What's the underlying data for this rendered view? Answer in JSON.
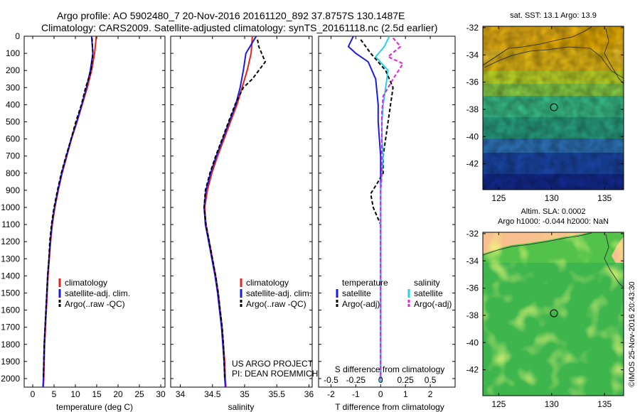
{
  "header": {
    "line1": "Argo profile: AO 5902480_7 20-Nov-2016 20161120_892 37.8757S 130.1487E",
    "line2": "Climatology: CARS2009. Satellite-adjusted climatology: synTS_20161118.nc (2.5d earlier)"
  },
  "colors": {
    "climatology": "#e8231a",
    "satellite": "#1a1ae6",
    "argo": "#000000",
    "sal_satellite": "#22d3e6",
    "sal_argo": "#e020e0",
    "land": "#f7c08e"
  },
  "chart_data": [
    {
      "type": "line",
      "id": "temperature",
      "xlabel": "temperature (deg C)",
      "xlim": [
        -2,
        31
      ],
      "xticks": [
        0,
        5,
        10,
        15,
        20,
        25,
        30
      ],
      "ylim": [
        0,
        2050
      ],
      "yticks": [
        0,
        100,
        200,
        300,
        400,
        500,
        600,
        700,
        800,
        900,
        1000,
        1100,
        1200,
        1300,
        1400,
        1500,
        1600,
        1700,
        1800,
        1900,
        2000
      ],
      "legend": [
        "climatology",
        "satellite-adj. clim.",
        "Argo(..raw -QC)"
      ],
      "series": [
        {
          "name": "climatology",
          "color": "#e8231a",
          "style": "solid",
          "x": [
            14.9,
            14.5,
            13.8,
            12.8,
            11.6,
            10.4,
            9.1,
            8.0,
            6.9,
            6.0,
            5.2,
            4.6,
            4.2,
            3.9,
            3.6,
            3.4,
            3.2,
            3.0,
            2.8,
            2.7,
            2.6,
            2.5
          ],
          "y": [
            0,
            100,
            200,
            300,
            400,
            500,
            600,
            700,
            800,
            900,
            1000,
            1100,
            1200,
            1300,
            1400,
            1500,
            1600,
            1700,
            1800,
            1900,
            2000,
            2050
          ]
        },
        {
          "name": "satellite-adj. clim.",
          "color": "#1a1ae6",
          "style": "solid",
          "x": [
            13.8,
            14.1,
            13.5,
            12.6,
            11.5,
            10.3,
            9.0,
            7.9,
            6.8,
            5.9,
            5.1,
            4.5,
            4.1,
            3.8,
            3.5,
            3.3,
            3.1,
            2.9,
            2.7,
            2.6,
            2.5,
            2.4
          ],
          "y": [
            0,
            100,
            200,
            300,
            400,
            500,
            600,
            700,
            800,
            900,
            1000,
            1100,
            1200,
            1300,
            1400,
            1500,
            1600,
            1700,
            1800,
            1900,
            2000,
            2050
          ]
        },
        {
          "name": "Argo(..raw -QC)",
          "color": "#000000",
          "style": "dashed",
          "x": [
            13.9,
            14.1,
            13.7,
            12.4,
            11.4,
            10.1,
            9.0,
            7.8,
            6.7,
            5.8,
            5.0,
            4.4,
            4.0,
            3.8,
            3.5,
            3.3,
            3.1,
            2.9,
            2.7,
            2.6,
            2.5
          ],
          "y": [
            10,
            100,
            200,
            300,
            400,
            500,
            600,
            700,
            800,
            900,
            1000,
            1100,
            1200,
            1300,
            1400,
            1500,
            1600,
            1700,
            1800,
            1900,
            2000
          ]
        }
      ]
    },
    {
      "type": "line",
      "id": "salinity",
      "xlabel": "salinity",
      "xlim": [
        33.85,
        36.05
      ],
      "xticks": [
        34,
        34.5,
        35,
        35.5,
        36
      ],
      "ylim": [
        0,
        2050
      ],
      "yticks": [
        0,
        100,
        200,
        300,
        400,
        500,
        600,
        700,
        800,
        900,
        1000,
        1100,
        1200,
        1300,
        1400,
        1500,
        1600,
        1700,
        1800,
        1900,
        2000
      ],
      "legend": [
        "climatology",
        "satellite-adj. clim.",
        "Argo(..raw -QC)"
      ],
      "credits": [
        "US ARGO PROJECT",
        "PI: DEAN ROEMMICH"
      ],
      "series": [
        {
          "name": "climatology",
          "color": "#e8231a",
          "style": "solid",
          "x": [
            35.12,
            35.1,
            35.04,
            34.96,
            34.88,
            34.78,
            34.68,
            34.58,
            34.49,
            34.42,
            34.38,
            34.4,
            34.45,
            34.5,
            34.55,
            34.59,
            34.62,
            34.65,
            34.67,
            34.69,
            34.7,
            34.71
          ],
          "y": [
            0,
            100,
            200,
            300,
            400,
            500,
            600,
            700,
            800,
            900,
            1000,
            1100,
            1200,
            1300,
            1400,
            1500,
            1600,
            1700,
            1800,
            1900,
            2000,
            2050
          ]
        },
        {
          "name": "satellite-adj. clim.",
          "color": "#1a1ae6",
          "style": "solid",
          "x": [
            35.18,
            35.02,
            34.98,
            34.93,
            34.86,
            34.76,
            34.66,
            34.56,
            34.47,
            34.4,
            34.37,
            34.39,
            34.44,
            34.49,
            34.54,
            34.58,
            34.61,
            34.64,
            34.66,
            34.68,
            34.69,
            34.7
          ],
          "y": [
            0,
            100,
            200,
            300,
            400,
            500,
            600,
            700,
            800,
            900,
            1000,
            1100,
            1200,
            1300,
            1400,
            1500,
            1600,
            1700,
            1800,
            1900,
            2000,
            2050
          ]
        },
        {
          "name": "Argo(..raw -QC)",
          "color": "#000000",
          "style": "dashed",
          "x": [
            35.2,
            35.22,
            35.32,
            35.12,
            34.98,
            34.85,
            34.75,
            34.65,
            34.55,
            34.46,
            34.39,
            34.37,
            34.4,
            34.45,
            34.5,
            34.55,
            34.59,
            34.62,
            34.65,
            34.67,
            34.68,
            34.69
          ],
          "y": [
            20,
            60,
            150,
            250,
            300,
            400,
            500,
            600,
            700,
            800,
            900,
            1000,
            1100,
            1200,
            1300,
            1400,
            1500,
            1600,
            1700,
            1800,
            1900,
            2000
          ]
        }
      ]
    },
    {
      "type": "line",
      "id": "difference",
      "xlabel": "T difference from climatology",
      "xlabel_top": "S difference from climatology",
      "xlim": [
        -2.5,
        3.0
      ],
      "xticks": [
        -2,
        -1,
        0,
        1,
        2
      ],
      "xticks_s": [
        "-0.5",
        "-0.25",
        "0",
        "0.25",
        "0.5"
      ],
      "ylim": [
        0,
        2050
      ],
      "legend_temperature": {
        "title": "temperature",
        "items": [
          "satellite",
          "Argo(-adj)"
        ]
      },
      "legend_salinity": {
        "title": "salinity",
        "items": [
          "satellite",
          "Argo(-adj)"
        ]
      },
      "series": [
        {
          "name": "temperature satellite",
          "color": "#1a1ae6",
          "style": "solid",
          "x": [
            -1.1,
            -1.3,
            -1.0,
            -0.5,
            -0.2,
            -0.1,
            -0.1,
            -0.05,
            0,
            0,
            0,
            0,
            0,
            0,
            0,
            0,
            0,
            0,
            0,
            0,
            0
          ],
          "y": [
            0,
            60,
            100,
            150,
            250,
            400,
            500,
            600,
            700,
            800,
            900,
            1000,
            1100,
            1200,
            1300,
            1400,
            1500,
            1600,
            1700,
            1800,
            2020
          ]
        },
        {
          "name": "temperature Argo(-adj)",
          "color": "#000000",
          "style": "dashed",
          "x": [
            -0.8,
            -0.4,
            0.2,
            0.5,
            0.4,
            0.3,
            0.2,
            0.1,
            0.1,
            -0.1,
            -0.4,
            -0.3,
            0,
            0,
            0,
            0,
            0,
            0,
            0,
            0
          ],
          "y": [
            20,
            100,
            200,
            300,
            400,
            500,
            600,
            700,
            800,
            850,
            920,
            1000,
            1100,
            1200,
            1300,
            1400,
            1500,
            1600,
            1800,
            2000
          ]
        },
        {
          "name": "salinity satellite",
          "color": "#22d3e6",
          "style": "solid",
          "x": [
            0.35,
            0.15,
            -0.2,
            0.3,
            0.2,
            0.1,
            0.05,
            0.05,
            0.1,
            0.05,
            0,
            0,
            0,
            0,
            0,
            0,
            0,
            0,
            0,
            0
          ],
          "y": [
            0,
            60,
            120,
            200,
            300,
            400,
            500,
            600,
            700,
            800,
            900,
            1000,
            1100,
            1200,
            1300,
            1400,
            1500,
            1600,
            1800,
            2020
          ]
        },
        {
          "name": "salinity Argo(-adj)",
          "color": "#e020e0",
          "style": "dashed",
          "x": [
            0.5,
            0.8,
            0.3,
            0.9,
            0.5,
            0.1,
            0.05,
            0.05,
            0.05,
            0.05,
            0,
            0,
            0,
            0,
            0,
            0,
            0,
            0,
            0,
            0
          ],
          "y": [
            10,
            60,
            120,
            160,
            250,
            350,
            450,
            600,
            700,
            800,
            900,
            1000,
            1100,
            1200,
            1300,
            1400,
            1500,
            1600,
            1800,
            2000
          ]
        }
      ]
    },
    {
      "type": "heatmap",
      "id": "sst-map",
      "title": "sat. SST: 13.1  Argo: 13.9",
      "xticks": [
        125,
        130,
        135
      ],
      "yticks": [
        -32,
        -34,
        -36,
        -38,
        -40,
        -42
      ],
      "xlim": [
        123.5,
        136.8
      ],
      "ylim": [
        -43.9,
        -31.9
      ],
      "argo_position": [
        130.15,
        -37.88
      ],
      "color_bands": [
        "#f2b800",
        "#f0c516",
        "#c8e028",
        "#8ed84a",
        "#3cc890",
        "#2aa886",
        "#2f78c0",
        "#1c4ab0",
        "#142c96"
      ]
    },
    {
      "type": "heatmap",
      "id": "sla-map",
      "title_line1": "Altim. SLA: 0.0002",
      "title_line2": "Argo h1000: -0.044 h2000: NaN",
      "xticks": [
        125,
        130,
        135
      ],
      "yticks": [
        -32,
        -34,
        -36,
        -38,
        -40,
        -42
      ],
      "xlim": [
        123.5,
        136.8
      ],
      "ylim": [
        -43.9,
        -31.9
      ],
      "argo_position": [
        130.15,
        -37.88
      ]
    }
  ],
  "stamp": "©IMOS 25-Nov-2016 20:43:30"
}
